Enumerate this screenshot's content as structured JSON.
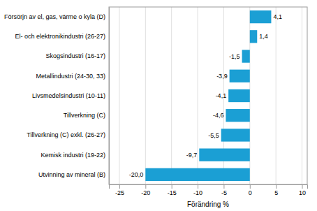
{
  "chart_data": {
    "type": "bar",
    "orientation": "horizontal",
    "categories": [
      "Utvinning av mineral (B)",
      "Kemisk industri (19-22)",
      "Tillverkning (C) exkl. (26-27)",
      "Tillverkning (C)",
      "Livsmedelsindustri (10-11)",
      "Metallindustri (24-30, 33)",
      "Skogsindustri (16-17)",
      "El- och elektronikindustri (26-27)",
      "Försörjn av el, gas, värme o kyla (D)"
    ],
    "values": [
      -20.0,
      -9.7,
      -5.5,
      -4.6,
      -4.1,
      -3.9,
      -1.5,
      1.4,
      4.1
    ],
    "value_labels": [
      "-20,0",
      "-9,7",
      "-5,5",
      "-4,6",
      "-4,1",
      "-3,9",
      "-1,5",
      "1,4",
      "4,1"
    ],
    "data_labels": true,
    "color": "#1b9fd4",
    "xlabel": "Förändring %",
    "xlim": [
      -27,
      11
    ],
    "xticks": [
      -25,
      -20,
      -15,
      -10,
      -5,
      0,
      5,
      10
    ],
    "grid": true
  }
}
